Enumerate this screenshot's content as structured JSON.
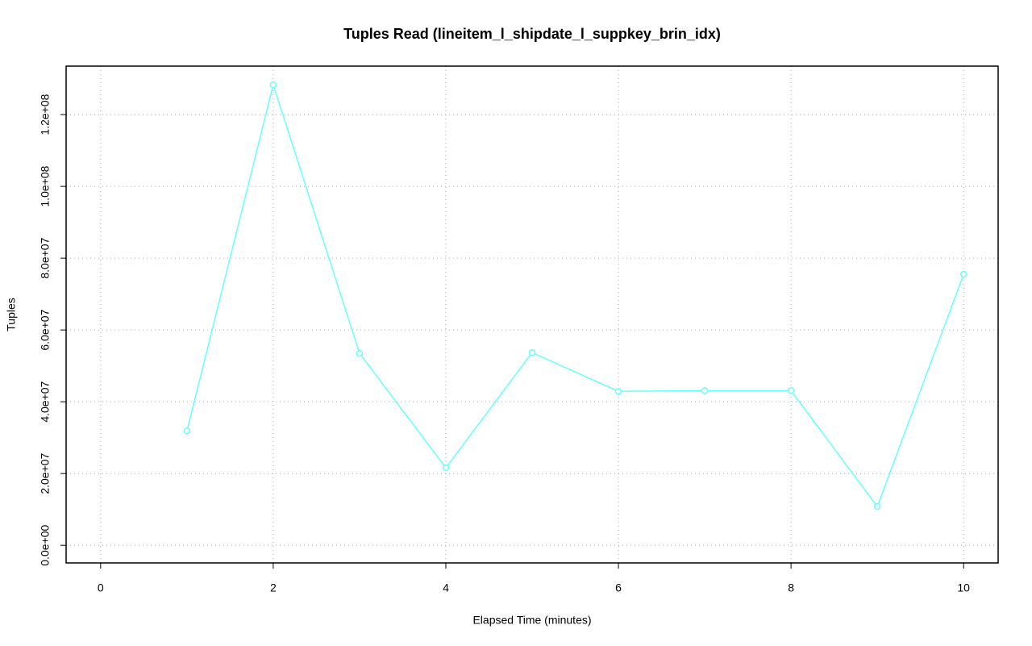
{
  "chart_data": {
    "type": "line",
    "title": "Tuples Read (lineitem_l_shipdate_l_suppkey_brin_idx)",
    "x_label": "Elapsed Time (minutes)",
    "y_label": "Tuples",
    "x": [
      1,
      2,
      3,
      4,
      5,
      6,
      7,
      8,
      9,
      10
    ],
    "values": [
      31900000,
      128300000,
      53500000,
      21600000,
      53700000,
      42900000,
      43100000,
      43100000,
      10800000,
      75500000
    ],
    "color": "#66ffff",
    "xlim": [
      -0.4,
      10.4
    ],
    "xticks": [
      0,
      2,
      4,
      6,
      8,
      10
    ],
    "ylim": [
      -4900000,
      133500000
    ],
    "yticks": [
      {
        "value": 0,
        "label": "0.0e+00"
      },
      {
        "value": 20000000,
        "label": "2.0e+07"
      },
      {
        "value": 40000000,
        "label": "4.0e+07"
      },
      {
        "value": 60000000,
        "label": "6.0e+07"
      },
      {
        "value": 80000000,
        "label": "8.0e+07"
      },
      {
        "value": 100000000,
        "label": "1.0e+08"
      },
      {
        "value": 120000000,
        "label": "1.2e+08"
      }
    ],
    "grid": true
  }
}
